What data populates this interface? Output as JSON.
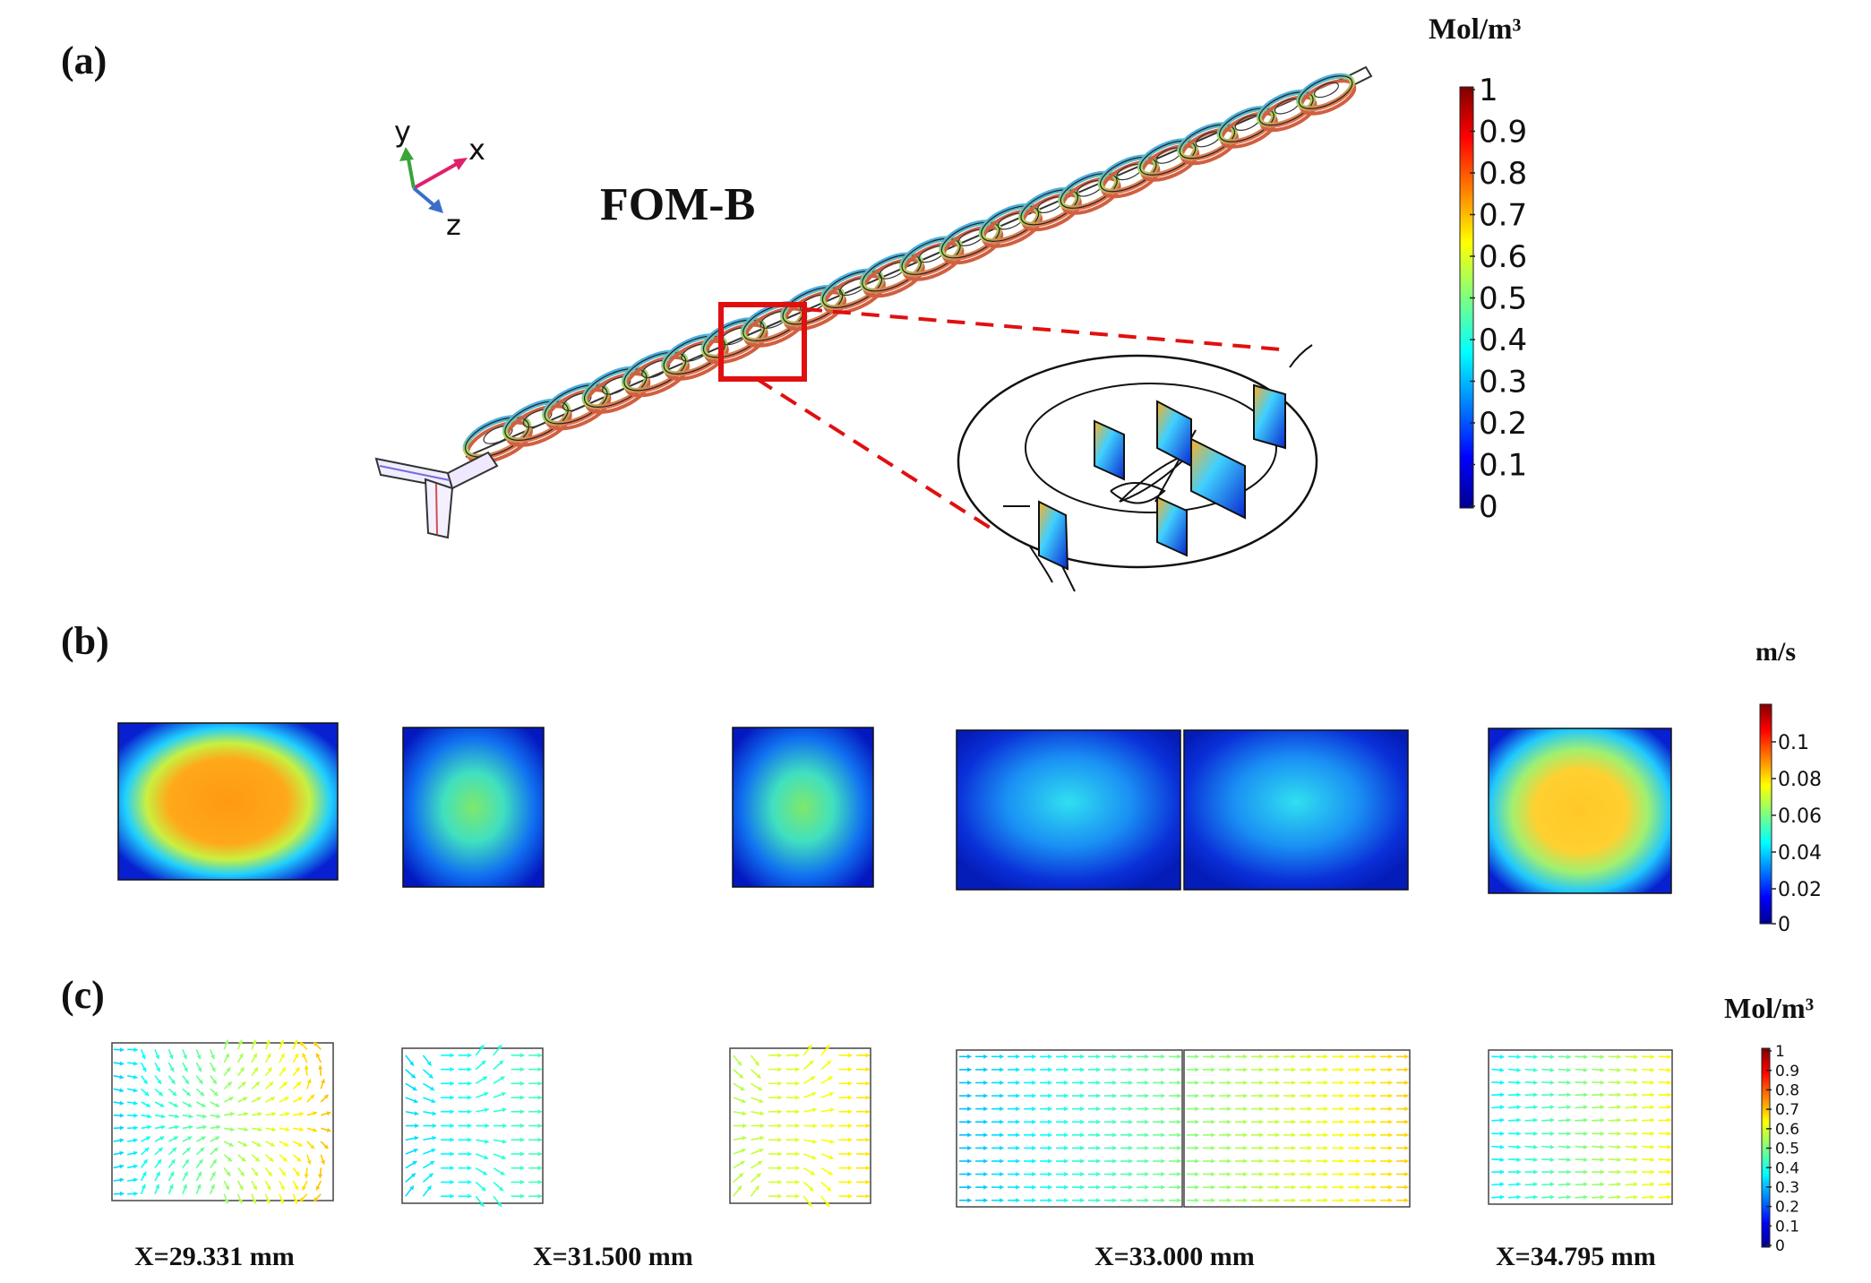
{
  "panels": {
    "a": {
      "label": "(a)",
      "title": "FOM-B",
      "axes": {
        "x": "x",
        "y": "y",
        "z": "z"
      }
    },
    "b": {
      "label": "(b)"
    },
    "c": {
      "label": "(c)"
    }
  },
  "colorbars": {
    "concentration_a": {
      "unit": "Mol/m³",
      "ticks": [
        "1",
        "0.9",
        "0.8",
        "0.7",
        "0.6",
        "0.5",
        "0.4",
        "0.3",
        "0.2",
        "0.1",
        "0"
      ]
    },
    "velocity_b": {
      "unit": "m/s",
      "ticks": [
        "0.1",
        "0.08",
        "0.06",
        "0.04",
        "0.02",
        "0"
      ]
    },
    "concentration_c": {
      "unit": "Mol/m³",
      "ticks": [
        "1",
        "0.9",
        "0.8",
        "0.7",
        "0.6",
        "0.5",
        "0.4",
        "0.3",
        "0.2",
        "0.1",
        "0"
      ]
    }
  },
  "sections": [
    {
      "caption": "X=29.331 mm"
    },
    {
      "caption": "X=31.500 mm"
    },
    {
      "caption": "X=33.000 mm"
    },
    {
      "caption": "X=34.795 mm"
    }
  ],
  "colors": {
    "highlight": "#e01010",
    "arrow_x": "#e0206a",
    "arrow_y": "#3aa33a",
    "arrow_z": "#3a6ec8"
  }
}
